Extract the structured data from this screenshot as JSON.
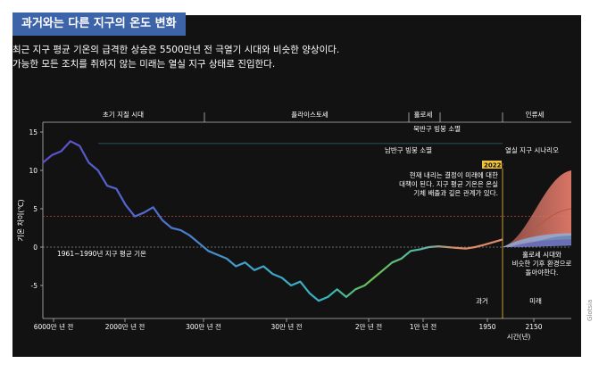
{
  "header": {
    "title": "과거와는 다른 지구의 온도 변화",
    "subtitle_line1": "최근 지구 평균 기온의 급격한 상승은 5500만년 전 극열기 시대와 비슷한 양상이다.",
    "subtitle_line2": "가능한 모든 조치를 취하지 않는 미래는 열실 지구 상태로 진입한다."
  },
  "credit": "Glotsia",
  "chart_data": {
    "type": "line",
    "ylabel": "기온 차이(℃)",
    "xlabel": "시간(년)",
    "ylim": [
      -8,
      16
    ],
    "y_ticks": [
      "15",
      "10",
      "5",
      "0",
      "-5"
    ],
    "y_tick_values": [
      15,
      10,
      5,
      0,
      -5
    ],
    "x_tick_labels": [
      "6000만 년 전",
      "2000만 년 전",
      "300만 년 전",
      "30만 년 전",
      "2만 년 전",
      "1만 년 전",
      "1950",
      "2150"
    ],
    "eras": [
      "초기 지질 시대",
      "플라이스토세",
      "홀로세",
      "인류세"
    ],
    "sections": [
      "과거",
      "미래"
    ],
    "ice_sheet_labels": {
      "north": "북반구 빙붕 소멸",
      "south": "남반구 빙붕 소멸"
    },
    "ice_sheet_threshold_c": 13.5,
    "hothouse_threshold_c": 4,
    "baseline_label": "1961~1990년 지구 평균 기온",
    "annotation_2022": {
      "badge": "2022년",
      "line1": "현재 내리는 결정이 미래에 대한",
      "line2": "대책이 된다. 지구 평균 기온은 온실",
      "line3": "기체 배출과 깊은 관계가 있다."
    },
    "hothouse_scenario": "열실 지구 시나리오",
    "holocene_note": {
      "line1": "홀로세 시대와",
      "line2": "비슷한 기후 환경으로",
      "line3": "돌아야한다."
    },
    "series": [
      {
        "values": [
          [
            0,
            11
          ],
          [
            0.02,
            12
          ],
          [
            0.04,
            12.5
          ],
          [
            0.06,
            13.8
          ],
          [
            0.08,
            13.2
          ],
          [
            0.1,
            11
          ],
          [
            0.12,
            10
          ],
          [
            0.14,
            8
          ],
          [
            0.16,
            7.6
          ],
          [
            0.18,
            5.5
          ],
          [
            0.2,
            4
          ],
          [
            0.22,
            4.5
          ],
          [
            0.24,
            5.2
          ],
          [
            0.26,
            3.5
          ],
          [
            0.28,
            2.5
          ],
          [
            0.3,
            2.2
          ],
          [
            0.32,
            1.5
          ],
          [
            0.34,
            0.5
          ],
          [
            0.36,
            -0.5
          ],
          [
            0.38,
            -1
          ],
          [
            0.4,
            -1.5
          ],
          [
            0.42,
            -2.5
          ],
          [
            0.44,
            -2
          ],
          [
            0.46,
            -3
          ],
          [
            0.48,
            -2.5
          ],
          [
            0.5,
            -3.5
          ],
          [
            0.52,
            -4
          ],
          [
            0.54,
            -5
          ],
          [
            0.56,
            -4.5
          ],
          [
            0.58,
            -6
          ],
          [
            0.6,
            -7
          ],
          [
            0.62,
            -6.5
          ],
          [
            0.64,
            -5.5
          ],
          [
            0.66,
            -6.5
          ],
          [
            0.68,
            -5.5
          ],
          [
            0.7,
            -5
          ],
          [
            0.72,
            -4
          ],
          [
            0.74,
            -3
          ],
          [
            0.76,
            -2
          ],
          [
            0.78,
            -1.5
          ],
          [
            0.8,
            -0.5
          ],
          [
            0.82,
            -0.3
          ],
          [
            0.84,
            0
          ],
          [
            0.86,
            0.1
          ],
          [
            0.88,
            0
          ],
          [
            0.9,
            -0.1
          ],
          [
            0.92,
            -0.2
          ],
          [
            0.94,
            0
          ],
          [
            0.96,
            0.3
          ],
          [
            1,
            1
          ]
        ]
      }
    ],
    "future_scenarios": {
      "start_year": 1950,
      "end_year": 2300,
      "hothouse_band": {
        "lower_end": 1.5,
        "upper_end": 10,
        "mid_end": 5
      },
      "holocene_band": {
        "lower_end": 0.2,
        "upper_end": 1.8
      }
    }
  }
}
